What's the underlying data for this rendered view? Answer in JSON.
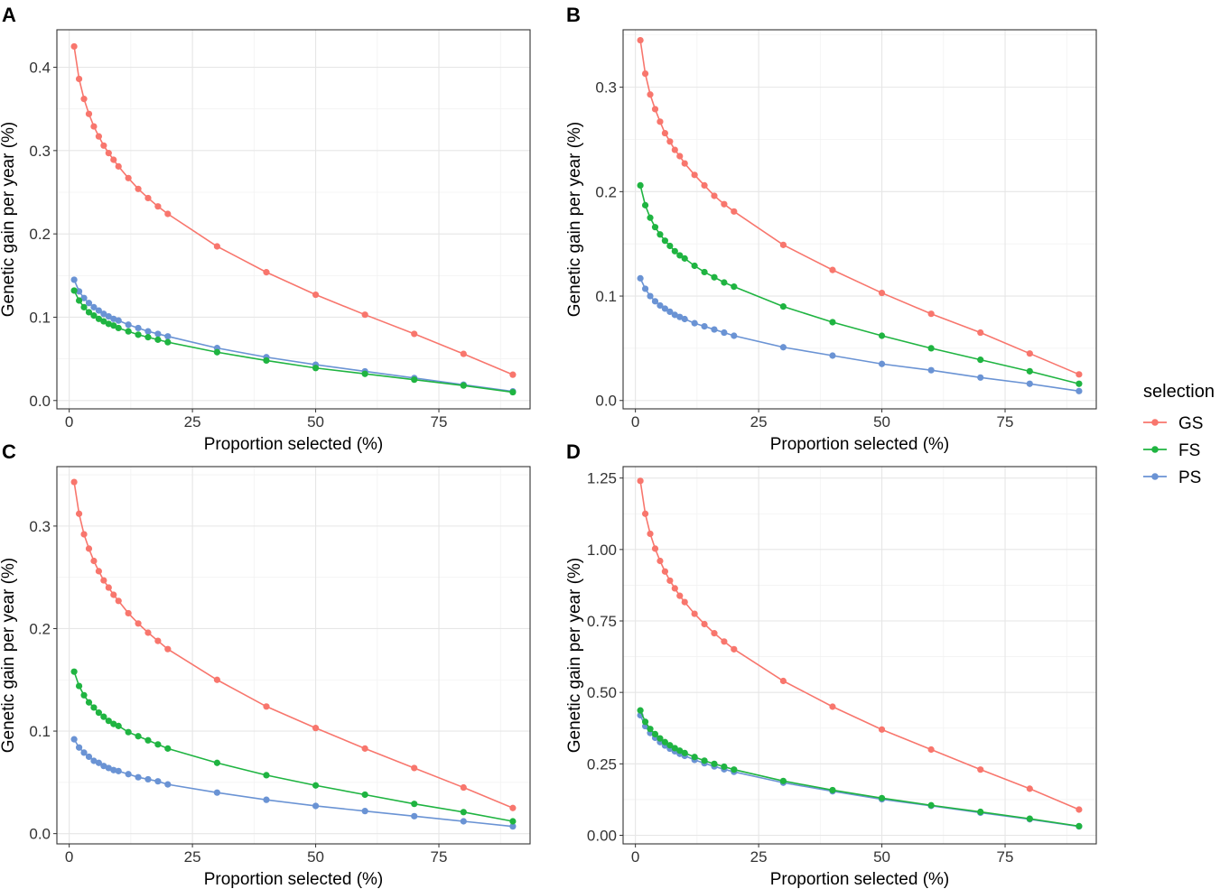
{
  "legend": {
    "title": "selection",
    "entries": [
      {
        "label": "GS",
        "color": "#F8766D"
      },
      {
        "label": "FS",
        "color": "#1FB441"
      },
      {
        "label": "PS",
        "color": "#6A93D4"
      }
    ]
  },
  "chart_data": [
    {
      "panel": "A",
      "type": "line",
      "xlabel": "Proportion selected (%)",
      "ylabel": "Genetic gain per year (%)",
      "xlim": [
        -2.5,
        93.5
      ],
      "ylim": [
        -0.01,
        0.445
      ],
      "xticks": [
        0,
        25,
        50,
        75
      ],
      "xtick_labels": [
        "0",
        "25",
        "50",
        "75"
      ],
      "yticks": [
        0.0,
        0.1,
        0.2,
        0.3,
        0.4
      ],
      "ytick_labels": [
        "0.0",
        "0.1",
        "0.2",
        "0.3",
        "0.4"
      ],
      "x": [
        1,
        2,
        3,
        4,
        5,
        6,
        7,
        8,
        9,
        10,
        12,
        14,
        16,
        18,
        20,
        30,
        40,
        50,
        60,
        70,
        80,
        90
      ],
      "series": [
        {
          "name": "GS",
          "values": [
            0.425,
            0.386,
            0.362,
            0.344,
            0.329,
            0.317,
            0.306,
            0.297,
            0.289,
            0.281,
            0.267,
            0.254,
            0.243,
            0.233,
            0.224,
            0.185,
            0.154,
            0.127,
            0.103,
            0.08,
            0.056,
            0.031
          ]
        },
        {
          "name": "FS",
          "values": [
            0.132,
            0.12,
            0.112,
            0.106,
            0.102,
            0.098,
            0.095,
            0.092,
            0.09,
            0.087,
            0.083,
            0.079,
            0.076,
            0.073,
            0.07,
            0.058,
            0.048,
            0.039,
            0.032,
            0.025,
            0.018,
            0.01
          ]
        },
        {
          "name": "PS",
          "values": [
            0.145,
            0.131,
            0.123,
            0.117,
            0.112,
            0.108,
            0.104,
            0.101,
            0.098,
            0.096,
            0.091,
            0.087,
            0.083,
            0.08,
            0.077,
            0.063,
            0.052,
            0.043,
            0.035,
            0.027,
            0.019,
            0.011
          ]
        }
      ]
    },
    {
      "panel": "B",
      "type": "line",
      "xlabel": "Proportion selected (%)",
      "ylabel": "Genetic gain per year (%)",
      "xlim": [
        -2.5,
        93.5
      ],
      "ylim": [
        -0.008,
        0.355
      ],
      "xticks": [
        0,
        25,
        50,
        75
      ],
      "xtick_labels": [
        "0",
        "25",
        "50",
        "75"
      ],
      "yticks": [
        0.0,
        0.1,
        0.2,
        0.3
      ],
      "ytick_labels": [
        "0.0",
        "0.1",
        "0.2",
        "0.3"
      ],
      "x": [
        1,
        2,
        3,
        4,
        5,
        6,
        7,
        8,
        9,
        10,
        12,
        14,
        16,
        18,
        20,
        30,
        40,
        50,
        60,
        70,
        80,
        90
      ],
      "series": [
        {
          "name": "GS",
          "values": [
            0.345,
            0.313,
            0.293,
            0.279,
            0.267,
            0.256,
            0.248,
            0.24,
            0.234,
            0.227,
            0.216,
            0.206,
            0.196,
            0.188,
            0.181,
            0.149,
            0.125,
            0.103,
            0.083,
            0.065,
            0.045,
            0.025
          ]
        },
        {
          "name": "FS",
          "values": [
            0.206,
            0.187,
            0.175,
            0.166,
            0.159,
            0.153,
            0.148,
            0.143,
            0.139,
            0.136,
            0.129,
            0.123,
            0.118,
            0.113,
            0.109,
            0.09,
            0.075,
            0.062,
            0.05,
            0.039,
            0.028,
            0.016
          ]
        },
        {
          "name": "PS",
          "values": [
            0.117,
            0.107,
            0.1,
            0.095,
            0.091,
            0.088,
            0.085,
            0.082,
            0.08,
            0.078,
            0.074,
            0.071,
            0.068,
            0.065,
            0.062,
            0.051,
            0.043,
            0.035,
            0.029,
            0.022,
            0.016,
            0.009
          ]
        }
      ]
    },
    {
      "panel": "C",
      "type": "line",
      "xlabel": "Proportion selected (%)",
      "ylabel": "Genetic gain per year (%)",
      "xlim": [
        -2.5,
        93.5
      ],
      "ylim": [
        -0.01,
        0.358
      ],
      "xticks": [
        0,
        25,
        50,
        75
      ],
      "xtick_labels": [
        "0",
        "25",
        "50",
        "75"
      ],
      "yticks": [
        0.0,
        0.1,
        0.2,
        0.3
      ],
      "ytick_labels": [
        "0.0",
        "0.1",
        "0.2",
        "0.3"
      ],
      "x": [
        1,
        2,
        3,
        4,
        5,
        6,
        7,
        8,
        9,
        10,
        12,
        14,
        16,
        18,
        20,
        30,
        40,
        50,
        60,
        70,
        80,
        90
      ],
      "series": [
        {
          "name": "GS",
          "values": [
            0.343,
            0.312,
            0.292,
            0.278,
            0.266,
            0.256,
            0.247,
            0.24,
            0.233,
            0.227,
            0.215,
            0.205,
            0.196,
            0.188,
            0.18,
            0.15,
            0.124,
            0.103,
            0.083,
            0.064,
            0.045,
            0.025
          ]
        },
        {
          "name": "FS",
          "values": [
            0.158,
            0.144,
            0.135,
            0.128,
            0.123,
            0.118,
            0.114,
            0.11,
            0.107,
            0.105,
            0.099,
            0.095,
            0.091,
            0.087,
            0.083,
            0.069,
            0.057,
            0.047,
            0.038,
            0.029,
            0.021,
            0.012
          ]
        },
        {
          "name": "PS",
          "values": [
            0.092,
            0.084,
            0.079,
            0.075,
            0.071,
            0.069,
            0.066,
            0.064,
            0.062,
            0.061,
            0.058,
            0.055,
            0.053,
            0.051,
            0.048,
            0.04,
            0.033,
            0.027,
            0.022,
            0.017,
            0.012,
            0.007
          ]
        }
      ]
    },
    {
      "panel": "D",
      "type": "line",
      "xlabel": "Proportion selected (%)",
      "ylabel": "Genetic gain per year (%)",
      "xlim": [
        -2.5,
        93.5
      ],
      "ylim": [
        -0.03,
        1.29
      ],
      "xticks": [
        0,
        25,
        50,
        75
      ],
      "xtick_labels": [
        "0",
        "25",
        "50",
        "75"
      ],
      "yticks": [
        0.0,
        0.25,
        0.5,
        0.75,
        1.0,
        1.25
      ],
      "ytick_labels": [
        "0.00",
        "0.25",
        "0.50",
        "0.75",
        "1.00",
        "1.25"
      ],
      "x": [
        1,
        2,
        3,
        4,
        5,
        6,
        7,
        8,
        9,
        10,
        12,
        14,
        16,
        18,
        20,
        30,
        40,
        50,
        60,
        70,
        80,
        90
      ],
      "series": [
        {
          "name": "GS",
          "values": [
            1.24,
            1.125,
            1.055,
            1.003,
            0.96,
            0.923,
            0.891,
            0.864,
            0.838,
            0.816,
            0.775,
            0.739,
            0.707,
            0.678,
            0.651,
            0.54,
            0.45,
            0.37,
            0.3,
            0.23,
            0.163,
            0.09
          ]
        },
        {
          "name": "FS",
          "values": [
            0.437,
            0.397,
            0.372,
            0.354,
            0.339,
            0.326,
            0.315,
            0.305,
            0.296,
            0.288,
            0.274,
            0.261,
            0.25,
            0.24,
            0.23,
            0.19,
            0.158,
            0.13,
            0.105,
            0.082,
            0.058,
            0.032
          ]
        },
        {
          "name": "PS",
          "values": [
            0.42,
            0.382,
            0.358,
            0.341,
            0.326,
            0.314,
            0.303,
            0.294,
            0.285,
            0.278,
            0.264,
            0.252,
            0.241,
            0.231,
            0.222,
            0.184,
            0.154,
            0.126,
            0.103,
            0.079,
            0.056,
            0.031
          ]
        }
      ]
    }
  ]
}
